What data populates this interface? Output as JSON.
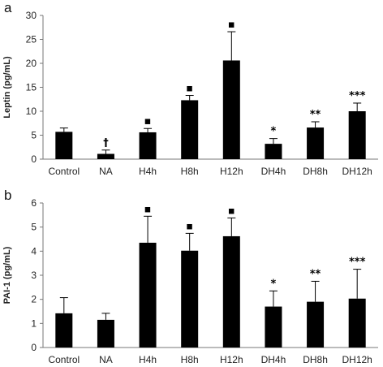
{
  "chart_data": [
    {
      "type": "bar",
      "panel_label": "a",
      "ylabel": "Leptin (pg/mL)",
      "xlabel": "",
      "categories": [
        "Control",
        "NA",
        "H4h",
        "H8h",
        "H12h",
        "DH4h",
        "DH8h",
        "DH12h"
      ],
      "values": [
        5.7,
        1.1,
        5.6,
        12.3,
        20.6,
        3.2,
        6.6,
        10.0
      ],
      "errors": [
        0.8,
        0.8,
        0.8,
        1.0,
        6.0,
        1.1,
        1.2,
        1.7
      ],
      "annotations": [
        "",
        "†",
        "▪",
        "▪",
        "▪",
        "*",
        "**",
        "***"
      ],
      "ylim": [
        0,
        30
      ],
      "yticks": [
        0,
        5,
        10,
        15,
        20,
        25,
        30
      ],
      "bar_color": "#000000",
      "grid": false
    },
    {
      "type": "bar",
      "panel_label": "b",
      "ylabel": "PAI-1 (pg/mL)",
      "xlabel": "",
      "categories": [
        "Control",
        "NA",
        "H4h",
        "H8h",
        "H12h",
        "DH4h",
        "DH8h",
        "DH12h"
      ],
      "values": [
        1.42,
        1.15,
        4.35,
        4.02,
        4.62,
        1.7,
        1.9,
        2.03
      ],
      "errors": [
        0.65,
        0.27,
        1.1,
        0.72,
        0.76,
        0.65,
        0.85,
        1.22
      ],
      "annotations": [
        "",
        "",
        "▪",
        "▪",
        "▪",
        "*",
        "**",
        "***"
      ],
      "ylim": [
        0,
        6
      ],
      "yticks": [
        0,
        1,
        2,
        3,
        4,
        5,
        6
      ],
      "bar_color": "#000000",
      "grid": false
    }
  ]
}
